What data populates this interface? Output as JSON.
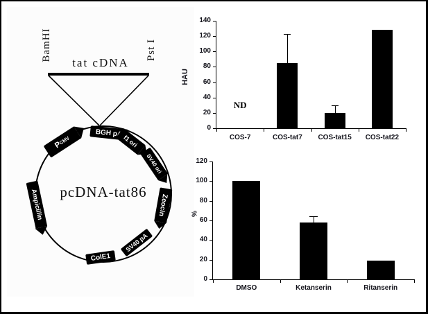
{
  "plasmid": {
    "name": "pcDNA-tat86",
    "insert": "tat cDNA",
    "sites": {
      "left": "BamHI",
      "right": "Pst I"
    },
    "elements": {
      "pcmv_p": "P",
      "pcmv_sub": "CMV",
      "bgh_pa": "BGH pA",
      "f1_ori": "f1 ori",
      "sv40_ori": "SV40 ori",
      "zeocin": "Zeocin",
      "sv40_pa": "SV40 pA",
      "cole1": "ColE1",
      "ampicillin": "Ampicillin"
    }
  },
  "chart_data": [
    {
      "type": "bar",
      "title": "",
      "categories": [
        "COS-7",
        "COS-tat7",
        "COS-tat15",
        "COS-tat22"
      ],
      "values": [
        null,
        85,
        20,
        128
      ],
      "errors_up": [
        null,
        38,
        10,
        null
      ],
      "annotations": [
        {
          "category": "COS-7",
          "text": "ND",
          "y_value": 30
        }
      ],
      "xlabel": "",
      "ylabel": "HAU",
      "ylim": [
        0,
        140
      ],
      "ytick_step": 20,
      "grid": false,
      "legend": false,
      "bar_color": "#000000"
    },
    {
      "type": "bar",
      "title": "",
      "categories": [
        "DMSO",
        "Ketanserin",
        "Ritanserin"
      ],
      "values": [
        100,
        58,
        19
      ],
      "errors_up": [
        null,
        6,
        null
      ],
      "annotations": [],
      "xlabel": "",
      "ylabel": "%",
      "ylim": [
        0,
        120
      ],
      "ytick_step": 20,
      "grid": false,
      "legend": false,
      "bar_color": "#000000"
    }
  ]
}
